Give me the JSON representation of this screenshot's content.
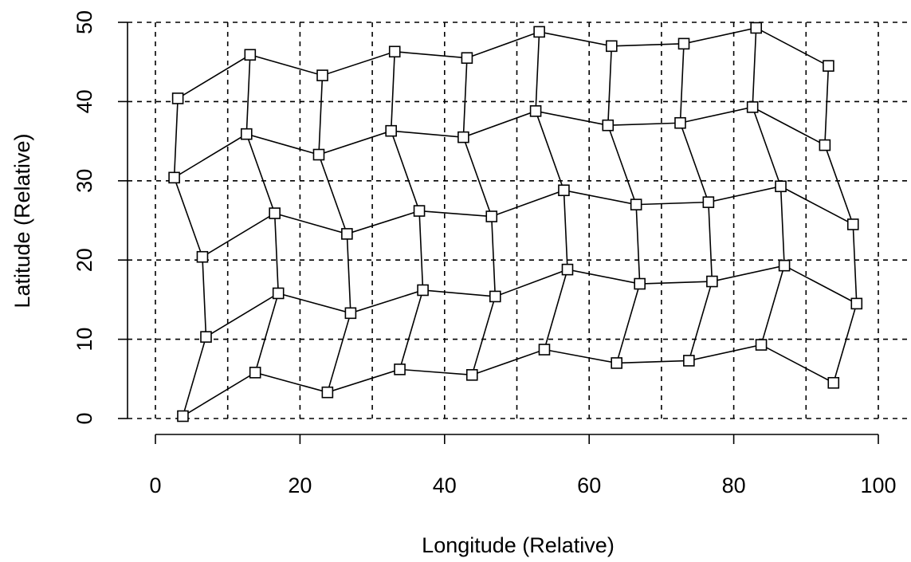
{
  "chart_data": {
    "type": "scatter",
    "xlabel": "Longitude (Relative)",
    "ylabel": "Latitude (Relative)",
    "xlim": [
      0,
      100
    ],
    "ylim": [
      0,
      50
    ],
    "x_ticks": [
      0,
      20,
      40,
      60,
      80,
      100
    ],
    "y_ticks": [
      0,
      10,
      20,
      30,
      40,
      50
    ],
    "x_grid": [
      0,
      10,
      20,
      30,
      40,
      50,
      60,
      70,
      80,
      90,
      100
    ],
    "y_grid": [
      0,
      10,
      20,
      30,
      40,
      50
    ],
    "grid": true,
    "marker": "open-square",
    "connections": "rows and columns of the point grid joined by lines",
    "rows": [
      [
        [
          3.8,
          0.3
        ],
        [
          13.8,
          5.8
        ],
        [
          23.8,
          3.3
        ],
        [
          33.8,
          6.2
        ],
        [
          43.8,
          5.5
        ],
        [
          53.8,
          8.7
        ],
        [
          63.8,
          7.0
        ],
        [
          73.8,
          7.3
        ],
        [
          83.8,
          9.3
        ],
        [
          93.8,
          4.5
        ]
      ],
      [
        [
          7.0,
          10.3
        ],
        [
          17.0,
          15.8
        ],
        [
          27.0,
          13.3
        ],
        [
          37.0,
          16.2
        ],
        [
          47.0,
          15.4
        ],
        [
          57.0,
          18.8
        ],
        [
          67.0,
          17.0
        ],
        [
          77.0,
          17.3
        ],
        [
          87.0,
          19.3
        ],
        [
          97.0,
          14.5
        ]
      ],
      [
        [
          6.5,
          20.4
        ],
        [
          16.5,
          25.9
        ],
        [
          26.5,
          23.3
        ],
        [
          36.5,
          26.2
        ],
        [
          46.5,
          25.5
        ],
        [
          56.5,
          28.8
        ],
        [
          66.5,
          27.0
        ],
        [
          76.5,
          27.3
        ],
        [
          86.5,
          29.3
        ],
        [
          96.5,
          24.5
        ]
      ],
      [
        [
          2.6,
          30.4
        ],
        [
          12.6,
          35.9
        ],
        [
          22.6,
          33.3
        ],
        [
          32.6,
          36.3
        ],
        [
          42.6,
          35.5
        ],
        [
          52.6,
          38.8
        ],
        [
          62.6,
          37.0
        ],
        [
          72.6,
          37.3
        ],
        [
          82.6,
          39.3
        ],
        [
          92.6,
          34.5
        ]
      ],
      [
        [
          3.1,
          40.4
        ],
        [
          13.1,
          45.9
        ],
        [
          23.1,
          43.3
        ],
        [
          33.1,
          46.3
        ],
        [
          43.1,
          45.5
        ],
        [
          53.1,
          48.8
        ],
        [
          63.1,
          47.0
        ],
        [
          73.1,
          47.3
        ],
        [
          83.1,
          49.3
        ],
        [
          93.1,
          44.5
        ]
      ]
    ]
  }
}
